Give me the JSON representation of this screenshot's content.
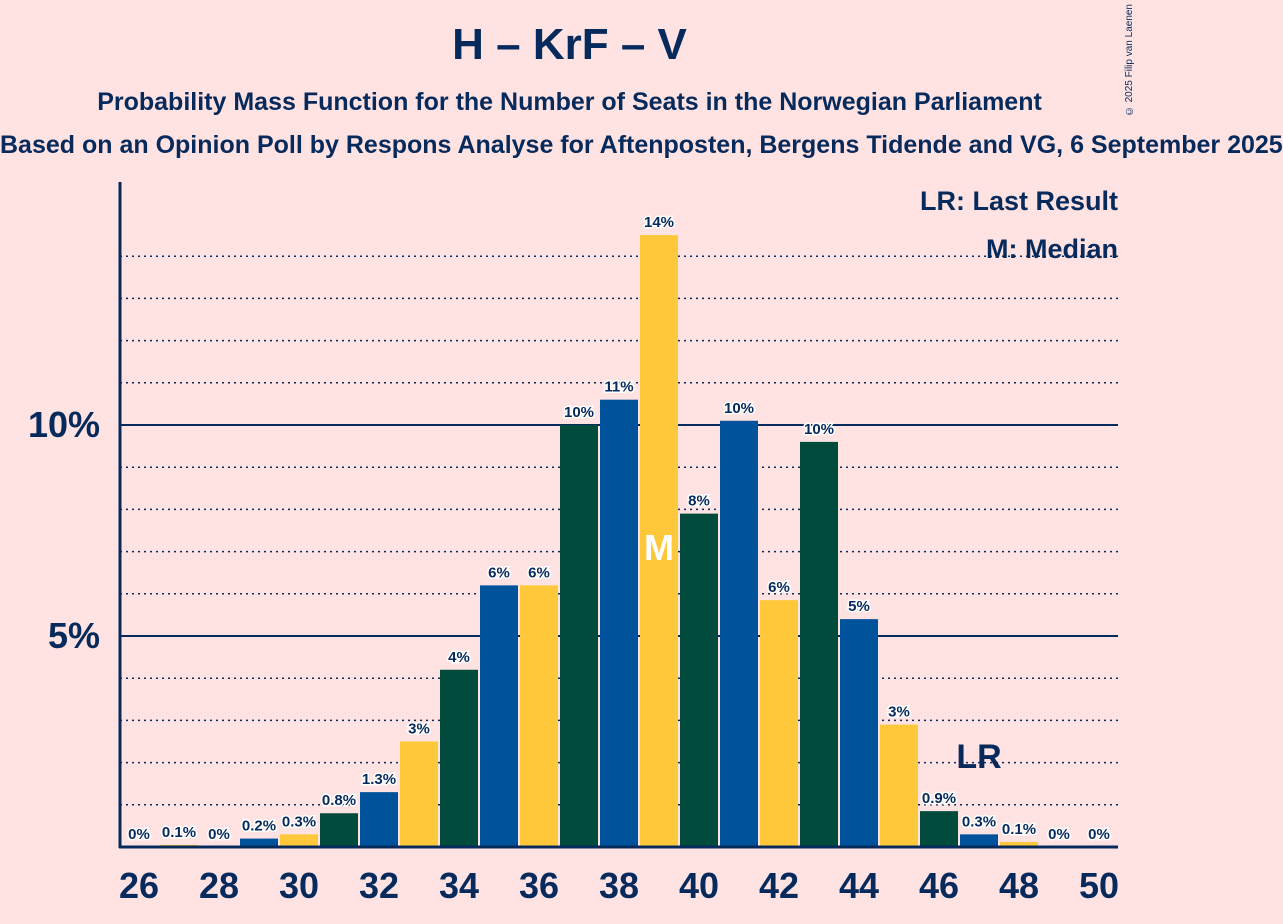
{
  "chart_data": {
    "type": "bar",
    "title": "H – KrF – V",
    "subtitle": "Probability Mass Function for the Number of Seats in the Norwegian Parliament",
    "subtitle2": "Based on an Opinion Poll by Respons Analyse for Aftenposten, Bergens Tidende and VG, 6 September 2025",
    "copyright": "© 2025 Filip van Laenen",
    "legend": {
      "lr": "LR: Last Result",
      "m": "M: Median",
      "placement": "top-right"
    },
    "x": [
      26,
      27,
      28,
      29,
      30,
      31,
      32,
      33,
      34,
      35,
      36,
      37,
      38,
      39,
      40,
      41,
      42,
      43,
      44,
      45,
      46,
      47,
      48,
      49,
      50
    ],
    "values": [
      0,
      0.05,
      0,
      0.2,
      0.3,
      0.8,
      1.3,
      2.5,
      4.2,
      6.2,
      6.2,
      10.0,
      10.6,
      14.5,
      7.9,
      10.1,
      5.85,
      9.6,
      5.4,
      2.9,
      0.85,
      0.3,
      0.12,
      0,
      0
    ],
    "labels": [
      "0%",
      "0.1%",
      "0%",
      "0.2%",
      "0.3%",
      "0.8%",
      "1.3%",
      "3%",
      "4%",
      "6%",
      "6%",
      "10%",
      "11%",
      "14%",
      "8%",
      "10%",
      "6%",
      "10%",
      "5%",
      "3%",
      "0.9%",
      "0.3%",
      "0.1%",
      "0%",
      "0%"
    ],
    "x_ticks": [
      "26",
      "28",
      "30",
      "32",
      "34",
      "36",
      "38",
      "40",
      "42",
      "44",
      "46",
      "48",
      "50"
    ],
    "y_ticks": [
      {
        "value": 5,
        "label": "5%"
      },
      {
        "value": 10,
        "label": "10%"
      }
    ],
    "ylim": [
      0,
      15.7
    ],
    "median_seat": 39,
    "median_marker": "M",
    "last_result_seat": 47,
    "last_result_marker": "LR",
    "colors": {
      "h": "#00529b",
      "krf": "#ffc83a",
      "v": "#004b3c",
      "text": "#062a5c",
      "background": "#ffe2e2"
    }
  }
}
